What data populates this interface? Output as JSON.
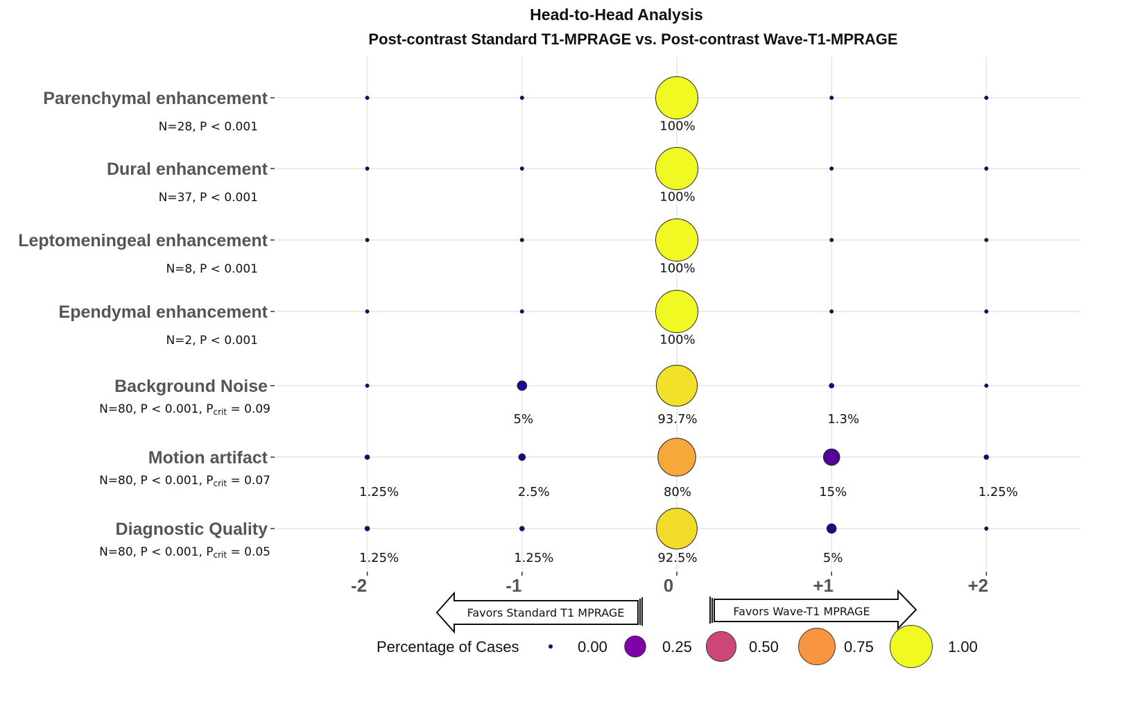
{
  "chart_data": {
    "type": "bubble",
    "title": "Head-to-Head Analysis",
    "subtitle": "Post-contrast Standard T1-MPRAGE vs. Post-contrast Wave-T1-MPRAGE",
    "x_categories": [
      "-2",
      "-1",
      "0",
      "+1",
      "+2"
    ],
    "x_values": [
      -2,
      -1,
      0,
      1,
      2
    ],
    "rows": [
      {
        "label": "Parenchymal enhancement",
        "stats": "N=28, P < 0.001",
        "pcrit": null,
        "values": [
          0,
          0,
          1.0,
          0,
          0
        ],
        "labels": [
          "",
          "",
          "100%",
          "",
          ""
        ]
      },
      {
        "label": "Dural enhancement",
        "stats": "N=37, P < 0.001",
        "pcrit": null,
        "values": [
          0,
          0,
          1.0,
          0,
          0
        ],
        "labels": [
          "",
          "",
          "100%",
          "",
          ""
        ]
      },
      {
        "label": "Leptomeningeal enhancement",
        "stats": "N=8, P < 0.001",
        "pcrit": null,
        "values": [
          0,
          0,
          1.0,
          0,
          0
        ],
        "labels": [
          "",
          "",
          "100%",
          "",
          ""
        ]
      },
      {
        "label": "Ependymal enhancement",
        "stats": "N=2, P < 0.001",
        "pcrit": null,
        "values": [
          0,
          0,
          1.0,
          0,
          0
        ],
        "labels": [
          "",
          "",
          "100%",
          "",
          ""
        ]
      },
      {
        "label": "Background Noise",
        "stats": "N=80, P < 0.001, P",
        "pcrit": {
          "sub": "crit",
          "value": " = 0.09"
        },
        "values": [
          0,
          0.05,
          0.937,
          0.013,
          0
        ],
        "labels": [
          "",
          "5%",
          "93.7%",
          "1.3%",
          ""
        ]
      },
      {
        "label": "Motion artifact",
        "stats": "N=80, P < 0.001, P",
        "pcrit": {
          "sub": "crit",
          "value": " = 0.07"
        },
        "values": [
          0.0125,
          0.025,
          0.8,
          0.15,
          0.0125
        ],
        "labels": [
          "1.25%",
          "2.5%",
          "80%",
          "15%",
          "1.25%"
        ]
      },
      {
        "label": "Diagnostic Quality",
        "stats": "N=80, P < 0.001, P",
        "pcrit": {
          "sub": "crit",
          "value": " = 0.05"
        },
        "values": [
          0.0125,
          0.0125,
          0.925,
          0.05,
          0
        ],
        "labels": [
          "1.25%",
          "1.25%",
          "92.5%",
          "5%",
          ""
        ]
      }
    ],
    "arrows": {
      "left": "Favors Standard T1 MPRAGE",
      "right": "Favors Wave-T1 MPRAGE"
    },
    "legend": {
      "title": "Percentage of Cases",
      "position": "bottom",
      "entries": [
        {
          "value": 0.0,
          "label": "0.00",
          "color": "#0d0887"
        },
        {
          "value": 0.25,
          "label": "0.25",
          "color": "#7e03a8"
        },
        {
          "value": 0.5,
          "label": "0.50",
          "color": "#cc4778"
        },
        {
          "value": 0.75,
          "label": "0.75",
          "color": "#f89540"
        },
        {
          "value": 1.0,
          "label": "1.00",
          "color": "#f0f921"
        }
      ]
    },
    "grid": true,
    "size_range": [
      0,
      1
    ]
  }
}
